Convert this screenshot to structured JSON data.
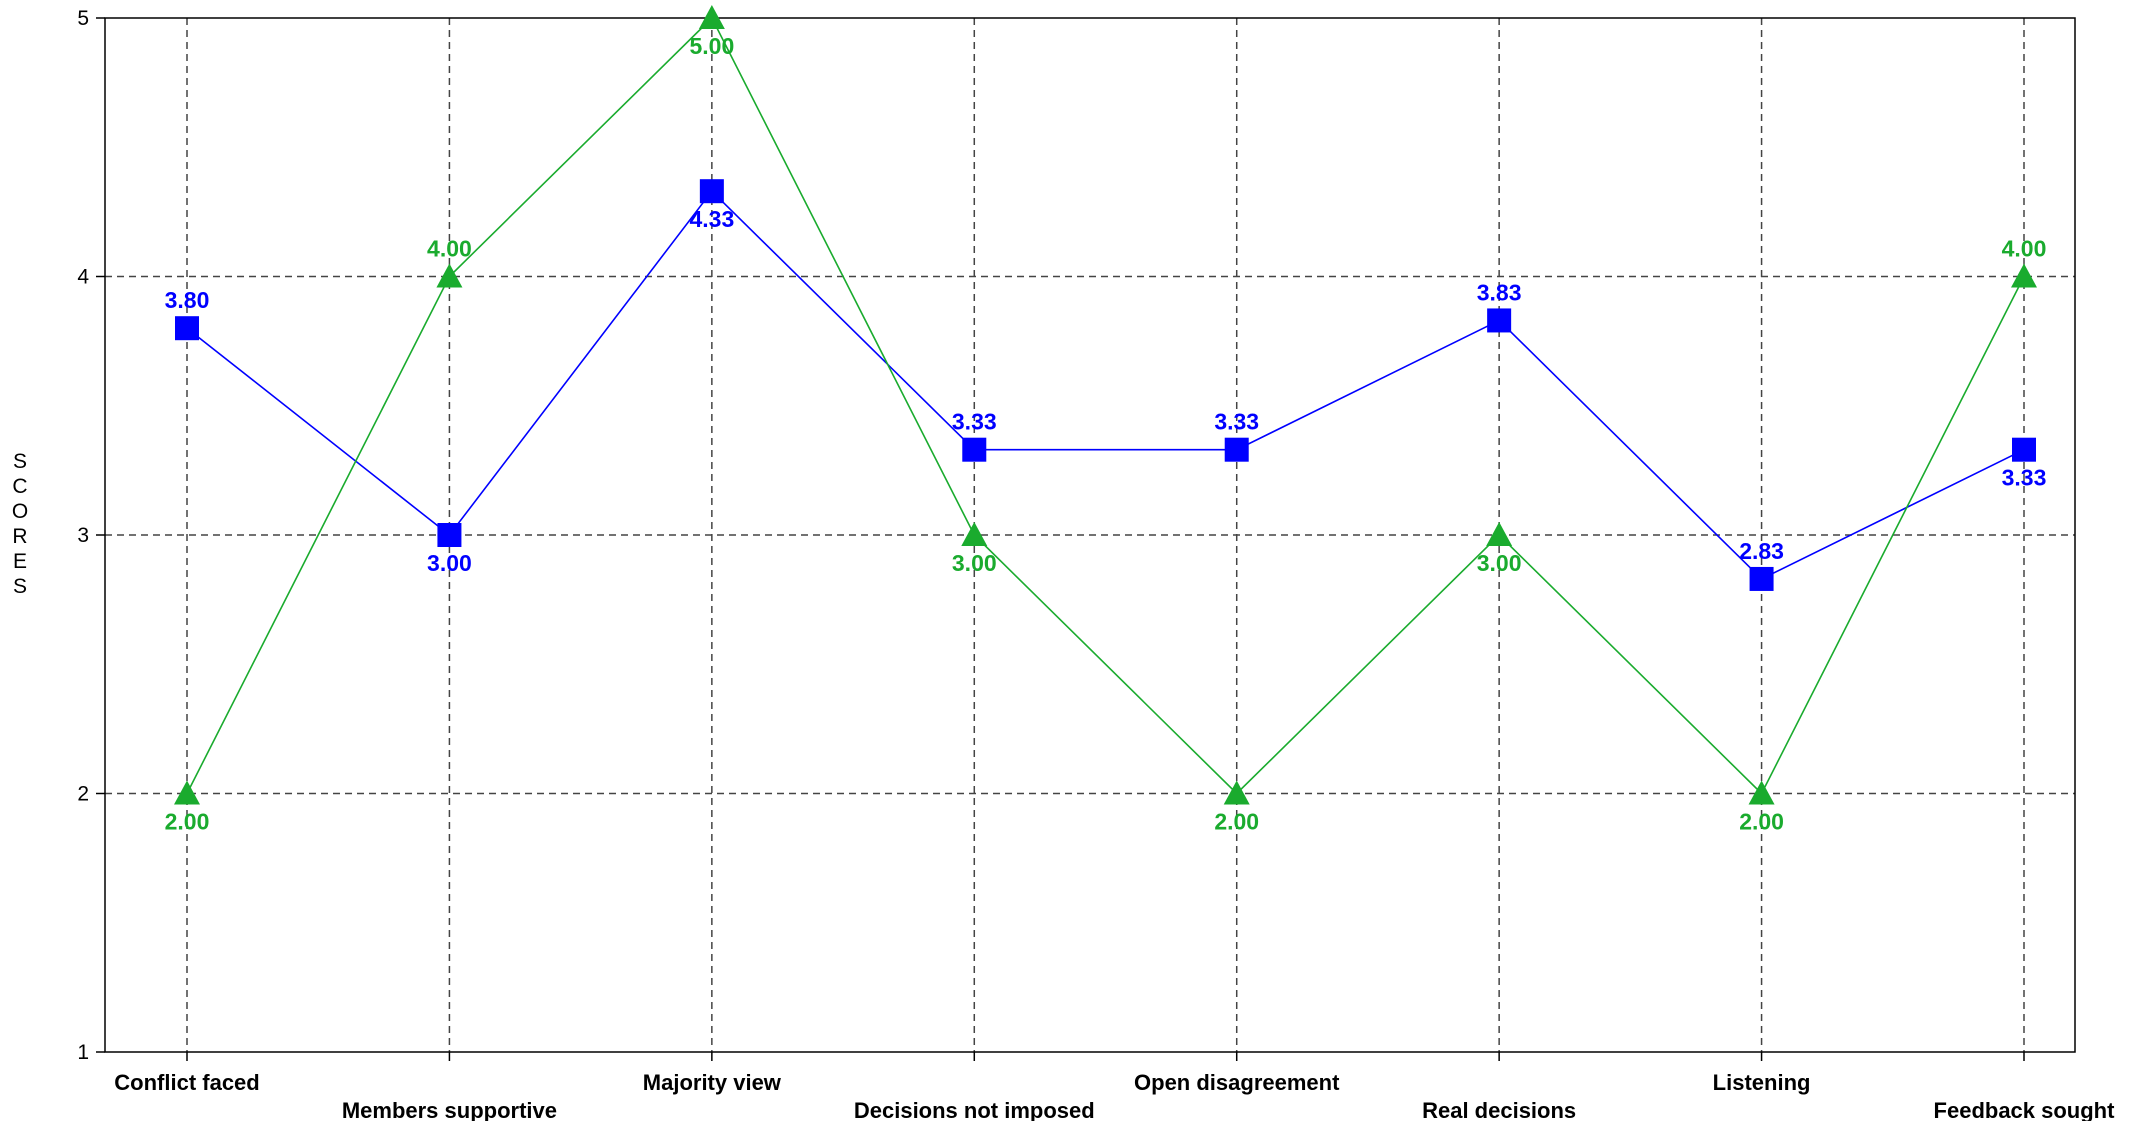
{
  "chart_data": {
    "type": "line",
    "title": "",
    "xlabel": "",
    "ylabel": "SCORES",
    "ylim": [
      1,
      5
    ],
    "yticks": [
      "1",
      "2",
      "3",
      "4",
      "5"
    ],
    "grid": true,
    "categories": [
      "Conflict faced",
      "Members supportive",
      "Majority view",
      "Decisions not imposed",
      "Open disagreement",
      "Real decisions",
      "Listening",
      "Feedback sought"
    ],
    "series": [
      {
        "marker": "square",
        "color": "#0000ff",
        "values": [
          3.8,
          3.0,
          4.33,
          3.33,
          3.33,
          3.83,
          2.83,
          3.33
        ],
        "labels": [
          "3.80",
          "3.00",
          "4.33",
          "3.33",
          "3.33",
          "3.83",
          "2.83",
          "3.33"
        ]
      },
      {
        "marker": "triangle",
        "color": "#1aab2e",
        "values": [
          2.0,
          4.0,
          5.0,
          3.0,
          2.0,
          3.0,
          2.0,
          4.0
        ],
        "labels": [
          "2.00",
          "4.00",
          "5.00",
          "3.00",
          "2.00",
          "3.00",
          "2.00",
          "4.00"
        ]
      }
    ]
  }
}
